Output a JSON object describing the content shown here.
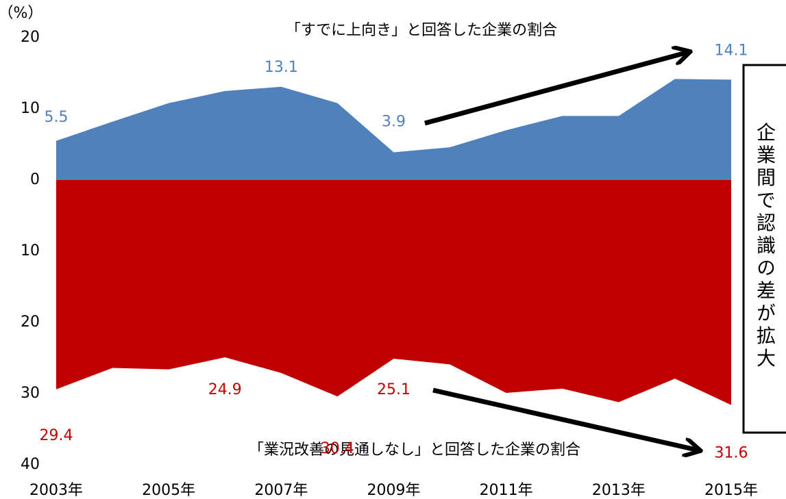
{
  "chart_data": {
    "type": "area",
    "title": "「すでに上向き」と回答した企業の割合",
    "annotations": [
      "「業況改善の見通しなし」と回答した企業の割合",
      "企業間で認識の差が拡大"
    ],
    "ylabel": "（%）",
    "categories": [
      "2003年",
      null,
      "2005年",
      null,
      "2007年",
      null,
      "2009年",
      null,
      "2011年",
      null,
      "2013年",
      null,
      "2015年"
    ],
    "series": [
      {
        "color": "#4f81bd",
        "values": [
          5.5,
          8.2,
          10.8,
          12.5,
          13.1,
          10.8,
          3.9,
          4.6,
          7.0,
          9.0,
          9.0,
          14.2,
          14.1
        ],
        "value_labels": [
          "5.5",
          null,
          null,
          null,
          "13.1",
          null,
          "3.9",
          null,
          null,
          null,
          null,
          null,
          "14.1"
        ]
      },
      {
        "color": "#c00000",
        "values": [
          -29.4,
          -26.4,
          -26.6,
          -24.9,
          -27.1,
          -30.4,
          -25.1,
          -25.9,
          -29.9,
          -29.3,
          -31.2,
          -27.9,
          -31.6
        ],
        "value_labels": [
          "29.4",
          null,
          null,
          "24.9",
          null,
          "30.4",
          "25.1",
          null,
          null,
          null,
          null,
          null,
          "31.6"
        ]
      }
    ],
    "ylim": [
      -40,
      20
    ],
    "yticks": [
      {
        "value": -40,
        "label": "40"
      },
      {
        "value": -30,
        "label": "30"
      },
      {
        "value": -20,
        "label": "20"
      },
      {
        "value": -10,
        "label": "10"
      },
      0,
      10,
      20
    ]
  }
}
